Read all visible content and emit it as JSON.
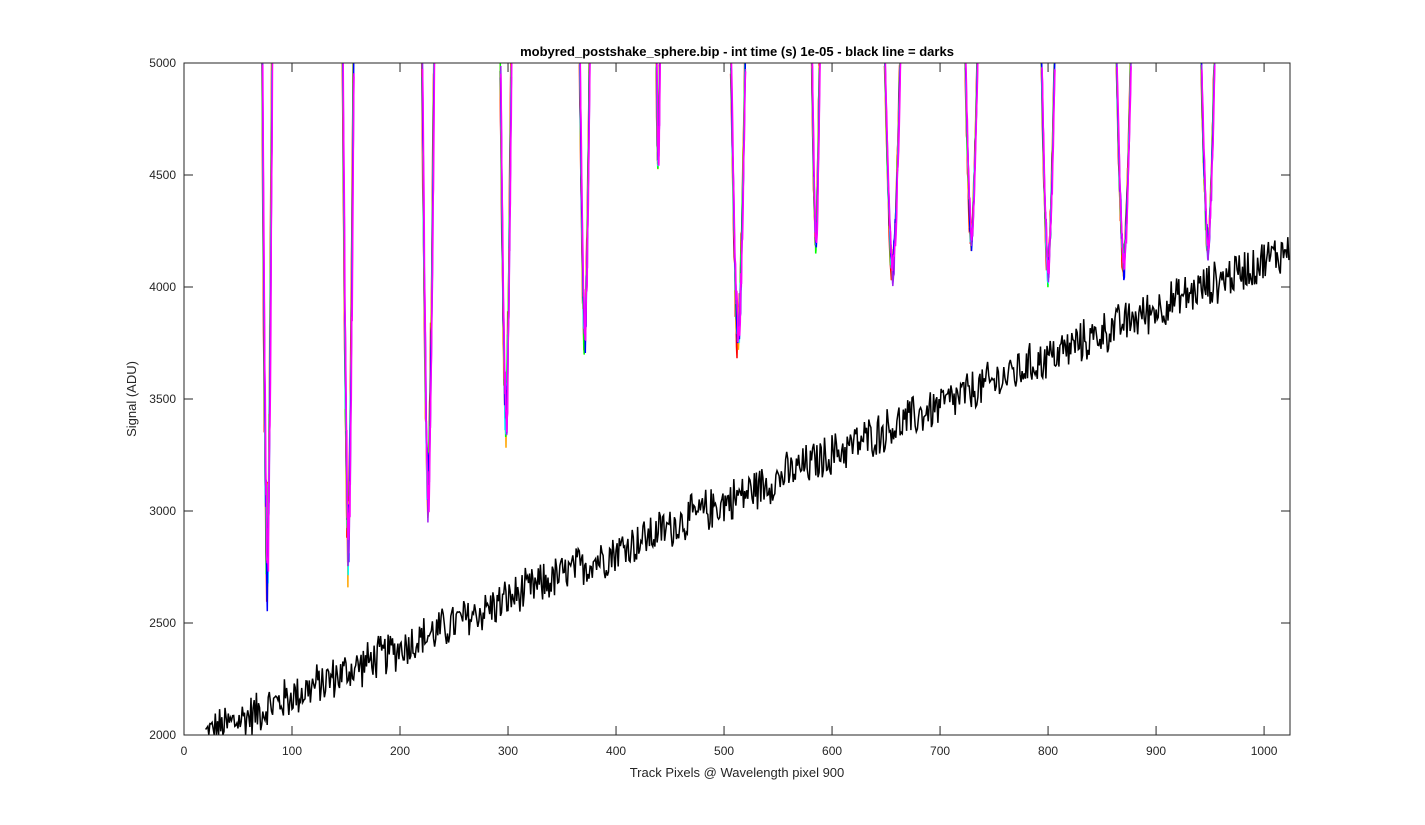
{
  "chart_data": {
    "type": "line",
    "title": "mobyred_postshake_sphere.bip - int time (s) 1e-05 - black line = darks",
    "xlabel": "Track Pixels @ Wavelength pixel 900",
    "ylabel": "Signal (ADU)",
    "xlim": [
      0,
      1024
    ],
    "ylim": [
      2000,
      5000
    ],
    "xticks": [
      0,
      100,
      200,
      300,
      400,
      500,
      600,
      700,
      800,
      900,
      1000
    ],
    "yticks": [
      2000,
      2500,
      3000,
      3500,
      4000,
      4500,
      5000
    ],
    "grid": false,
    "legend": "none",
    "colors": {
      "axes": "#262626",
      "darks": "#000000",
      "frame_lines": [
        "#ff0000",
        "#ffa500",
        "#00ff00",
        "#00ffff",
        "#0000ff",
        "#a020f0",
        "#ff00ff"
      ]
    },
    "darks": {
      "x_start": 20,
      "x_end": 1024,
      "y_start": 2000,
      "y_end": 4170,
      "noise_amplitude": 110,
      "description_points": [
        [
          20,
          2000
        ],
        [
          100,
          2110
        ],
        [
          200,
          2330
        ],
        [
          300,
          2560
        ],
        [
          400,
          2830
        ],
        [
          500,
          3100
        ],
        [
          600,
          3330
        ],
        [
          700,
          3560
        ],
        [
          800,
          3780
        ],
        [
          900,
          3950
        ],
        [
          1000,
          4110
        ],
        [
          1024,
          4170
        ]
      ]
    },
    "dips": [
      {
        "left": 72,
        "right": 81,
        "min": 2610,
        "center": 77
      },
      {
        "left": 146,
        "right": 156,
        "min": 2740,
        "center": 152
      },
      {
        "left": 219,
        "right": 230,
        "min": 2970,
        "center": 226
      },
      {
        "left": 293,
        "right": 303,
        "min": 3310,
        "center": 298
      },
      {
        "left": 366,
        "right": 375,
        "min": 3700,
        "center": 371
      },
      {
        "left": 438,
        "right": 441,
        "min": 4520,
        "center": 439
      },
      {
        "left": 507,
        "right": 520,
        "min": 3690,
        "center": 513
      },
      {
        "left": 583,
        "right": 590,
        "min": 4150,
        "center": 585
      },
      {
        "left": 649,
        "right": 663,
        "min": 4020,
        "center": 656
      },
      {
        "left": 722,
        "right": 733,
        "min": 4170,
        "center": 729
      },
      {
        "left": 793,
        "right": 805,
        "min": 4020,
        "center": 800
      },
      {
        "left": 866,
        "right": 879,
        "min": 4050,
        "center": 870
      },
      {
        "left": 944,
        "right": 956,
        "min": 4130,
        "center": 948
      }
    ]
  }
}
